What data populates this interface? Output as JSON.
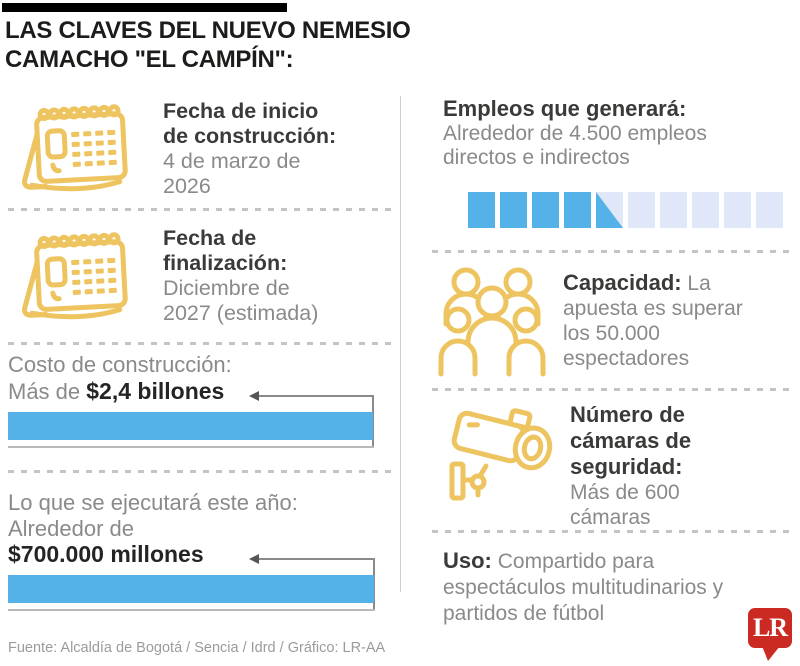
{
  "title_lines": [
    "LAS CLAVES DEL NUEVO NEMESIO",
    "CAMACHO \"EL CAMPÍN\":"
  ],
  "left_column": {
    "start_date": {
      "icon": "calendar-icon",
      "title_lines": [
        "Fecha de inicio",
        "de construcción:"
      ],
      "value_lines": [
        "4 de marzo de",
        "2026"
      ]
    },
    "end_date": {
      "icon": "calendar-icon",
      "title_lines": [
        "Fecha de",
        "finalización:"
      ],
      "value_lines": [
        "Diciembre de",
        "2027 (estimada)"
      ]
    },
    "cost": {
      "label": "Costo de construcción:",
      "prefix": "Más de ",
      "amount": "$2,4 billones"
    },
    "execution": {
      "label": "Lo que se ejecutará este año:",
      "prefix": "Alrededor de",
      "amount": "$700.000 millones"
    }
  },
  "right_column": {
    "jobs": {
      "title": "Empleos que generará:",
      "desc_lines": [
        "Alrededor de 4.500 empleos",
        "directos e indirectos"
      ],
      "segments": {
        "total": 10,
        "full": 4,
        "partial": 1
      }
    },
    "capacity": {
      "icon": "crowd-icon",
      "label": "Capacidad:",
      "text": " La apuesta es superar los 50.000 espectadores"
    },
    "cameras": {
      "icon": "security-camera-icon",
      "label": "Número de cámaras de seguridad:",
      "text": " Más de 600 cámaras"
    },
    "usage": {
      "label": "Uso:",
      "text": " Compartido para espectáculos multitudinarios y partidos de fútbol"
    }
  },
  "footer": {
    "source": "Fuente: Alcaldía de Bogotá / Sencia / Idrd / Gráfico: LR-AA",
    "logo_text": "LR"
  },
  "colors": {
    "accent_blue": "#55b2e9",
    "light_blue": "#dfe7f8",
    "gold": "#edc45f",
    "logo_red": "#cb2a23"
  },
  "chart_data": [
    {
      "type": "bar",
      "title": "Empleos que generará",
      "categories": [
        "Empleos directos e indirectos"
      ],
      "values": [
        4500
      ],
      "note": "10-block segmented indicator, 4.5 of 10 blocks filled (~45%)",
      "legend_position": "none",
      "grid": false
    },
    {
      "type": "bar",
      "title": "Costo de construcción",
      "categories": [
        "Más de $2,4 billones"
      ],
      "values": [
        2.4
      ],
      "ylabel": "billones COP",
      "note": "full-width blue bar annotated with arrow",
      "grid": false
    },
    {
      "type": "bar",
      "title": "Lo que se ejecutará este año",
      "categories": [
        "Alrededor de $700.000 millones"
      ],
      "values": [
        700000
      ],
      "ylabel": "millones COP",
      "note": "full-width blue bar annotated with arrow",
      "grid": false
    }
  ]
}
